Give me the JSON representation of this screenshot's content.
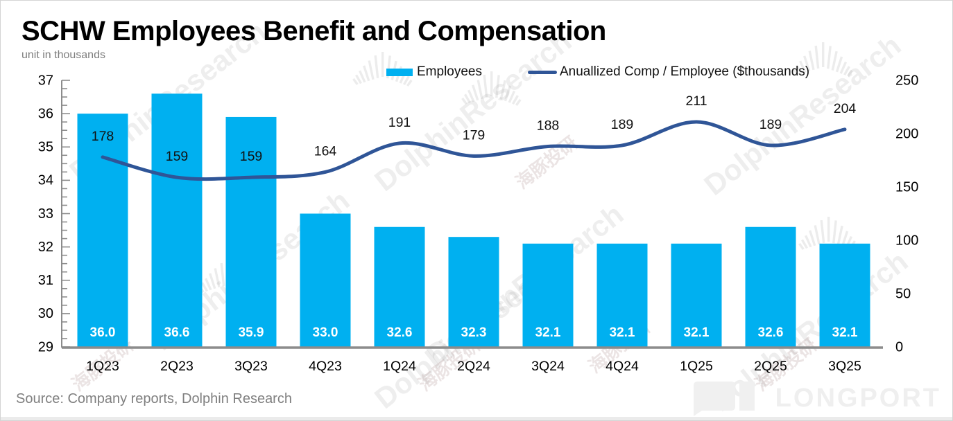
{
  "header": {
    "title": "SCHW Employees Benefit and Compensation",
    "subtitle": "unit in thousands"
  },
  "legend": {
    "items": [
      {
        "label": "Employees",
        "type": "bar",
        "color": "#00B0F0"
      },
      {
        "label": "Anuallized Comp / Employee ($thousands)",
        "type": "line",
        "color": "#2F5597"
      }
    ]
  },
  "chart_data": {
    "type": "bar+line",
    "title": "SCHW Employees Benefit and Compensation",
    "subtitle": "unit in thousands",
    "categories": [
      "1Q23",
      "2Q23",
      "3Q23",
      "4Q23",
      "1Q24",
      "2Q24",
      "3Q24",
      "4Q24",
      "1Q25",
      "2Q25",
      "3Q25"
    ],
    "series": [
      {
        "name": "Employees",
        "type": "bar",
        "axis": "left",
        "color": "#00B0F0",
        "values": [
          36.0,
          36.6,
          35.9,
          33.0,
          32.6,
          32.3,
          32.1,
          32.1,
          32.1,
          32.6,
          32.1
        ],
        "label_format": "one_decimal",
        "label_color": "#ffffff"
      },
      {
        "name": "Anuallized Comp / Employee ($thousands)",
        "type": "line",
        "axis": "right",
        "color": "#2F5597",
        "values": [
          178,
          159,
          159,
          164,
          191,
          179,
          188,
          189,
          211,
          189,
          204
        ],
        "label_format": "integer",
        "label_color": "#111111"
      }
    ],
    "left_axis": {
      "min": 29,
      "max": 37,
      "ticks": [
        37,
        36,
        35,
        34,
        33,
        32,
        31,
        30,
        29
      ],
      "minor_step": 0.25
    },
    "right_axis": {
      "min": 0,
      "max": 250,
      "ticks": [
        250,
        200,
        150,
        100,
        50,
        0
      ]
    },
    "grid": false,
    "legend_position": "top"
  },
  "watermarks": {
    "latin": "DolphinResearch",
    "cjk": "海豚投研"
  },
  "footer": {
    "source": "Source: Company reports, Dolphin Research",
    "brand": "LONGPORT"
  }
}
